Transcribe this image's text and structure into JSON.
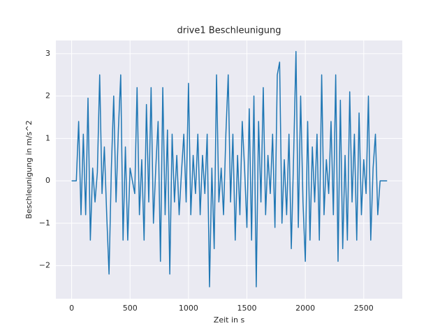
{
  "chart_data": {
    "type": "line",
    "title": "drive1 Beschleunigung",
    "x_label": "Zeit in s",
    "y_label": "Beschleunigung in m/s^2",
    "x": [
      0,
      20,
      40,
      60,
      80,
      100,
      120,
      140,
      160,
      180,
      200,
      220,
      240,
      260,
      280,
      300,
      320,
      340,
      360,
      380,
      400,
      420,
      440,
      460,
      480,
      500,
      520,
      540,
      560,
      580,
      600,
      620,
      640,
      660,
      680,
      700,
      720,
      740,
      760,
      780,
      800,
      820,
      840,
      860,
      880,
      900,
      920,
      940,
      960,
      980,
      1000,
      1020,
      1040,
      1060,
      1080,
      1100,
      1120,
      1140,
      1160,
      1180,
      1200,
      1220,
      1240,
      1260,
      1280,
      1300,
      1320,
      1340,
      1360,
      1380,
      1400,
      1420,
      1440,
      1460,
      1480,
      1500,
      1520,
      1540,
      1560,
      1580,
      1600,
      1620,
      1640,
      1660,
      1680,
      1700,
      1720,
      1740,
      1760,
      1780,
      1800,
      1820,
      1840,
      1860,
      1880,
      1900,
      1920,
      1940,
      1960,
      1980,
      2000,
      2020,
      2040,
      2060,
      2080,
      2100,
      2120,
      2140,
      2160,
      2180,
      2200,
      2220,
      2240,
      2260,
      2280,
      2300,
      2320,
      2340,
      2360,
      2380,
      2400,
      2420,
      2440,
      2460,
      2480,
      2500,
      2520,
      2540,
      2560,
      2580,
      2600,
      2620,
      2640,
      2660,
      2680,
      2700
    ],
    "values": [
      0,
      0,
      0,
      1.4,
      -0.8,
      1.1,
      -0.8,
      1.95,
      -1.4,
      0.3,
      -0.5,
      0.2,
      2.5,
      -0.3,
      0.8,
      -0.8,
      -2.2,
      0.3,
      2.0,
      -0.5,
      1.2,
      2.5,
      -1.4,
      0.8,
      -1.4,
      0.3,
      0,
      -0.3,
      2.2,
      -0.8,
      0.5,
      -1.4,
      1.8,
      -0.5,
      2.2,
      -1.0,
      0.3,
      1.4,
      -1.9,
      2.2,
      -0.8,
      1.2,
      -2.2,
      1.1,
      -0.5,
      0.6,
      -0.8,
      0.2,
      1.1,
      -0.5,
      2.3,
      -0.8,
      0.6,
      -0.3,
      1.1,
      -0.8,
      0.6,
      -0.3,
      1.1,
      -2.5,
      0.3,
      -1.6,
      2.5,
      -0.5,
      0.3,
      -0.8,
      1.1,
      2.5,
      -0.5,
      1.1,
      -1.4,
      0.6,
      -0.8,
      1.4,
      0.3,
      -1.1,
      1.7,
      -1.4,
      2.0,
      -2.5,
      1.4,
      -0.5,
      2.2,
      -0.8,
      0.6,
      -0.3,
      1.1,
      -1.1,
      2.5,
      2.8,
      -1.0,
      0.5,
      -0.8,
      1.1,
      -1.6,
      0.6,
      3.05,
      -1.1,
      2.0,
      -0.5,
      -1.9,
      1.4,
      -1.4,
      0.8,
      -0.5,
      1.1,
      -1.4,
      2.5,
      -0.8,
      0.5,
      -0.3,
      1.4,
      -0.8,
      2.5,
      -1.9,
      1.9,
      -1.6,
      0.6,
      -1.4,
      2.1,
      -0.5,
      1.1,
      -1.4,
      1.6,
      -0.8,
      0.5,
      -0.3,
      2.0,
      -1.4,
      0.3,
      1.1,
      -0.8,
      0,
      0,
      0,
      0
    ],
    "color": "#1f77b4",
    "xlim": [
      -135,
      2830
    ],
    "ylim": [
      -2.78,
      3.31
    ],
    "xticks": [
      0,
      500,
      1000,
      1500,
      2000,
      2500
    ],
    "yticks": [
      {
        "value": -2,
        "label": "−2"
      },
      {
        "value": -1,
        "label": "−1"
      },
      0,
      1,
      2,
      3
    ],
    "grid": true
  }
}
